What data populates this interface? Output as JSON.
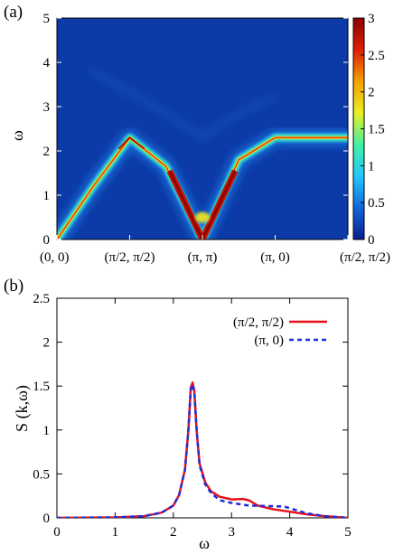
{
  "chart_data": [
    {
      "panel_label": "(a)",
      "type": "heatmap",
      "ylabel": "ω",
      "xlim_path": [
        0,
        4
      ],
      "ylim": [
        0,
        5
      ],
      "yticks": [
        "0",
        "1",
        "2",
        "3",
        "4",
        "5"
      ],
      "x_tick_positions": [
        0,
        1,
        2,
        3,
        4
      ],
      "x_tick_labels": [
        "(0, 0)",
        "(π/2, π/2)",
        "(π, π)",
        "(π, 0)",
        "(π/2, π/2)"
      ],
      "colorbar": {
        "range": [
          0,
          3
        ],
        "ticks": [
          "0",
          "0.5",
          "1",
          "1.5",
          "2",
          "2.5",
          "3"
        ],
        "colors": [
          "#0a1e8c",
          "#1066dc",
          "#22c8ff",
          "#43f0a0",
          "#e9f020",
          "#f5a000",
          "#e01e00",
          "#8c0000"
        ]
      },
      "dispersion_path": [
        {
          "k": 0.0,
          "omega": 0.0
        },
        {
          "k": 0.5,
          "omega": 1.2
        },
        {
          "k": 1.0,
          "omega": 2.3
        },
        {
          "k": 1.5,
          "omega": 1.65
        },
        {
          "k": 2.0,
          "omega": 0.0
        },
        {
          "k": 2.5,
          "omega": 1.8
        },
        {
          "k": 3.0,
          "omega": 2.3
        },
        {
          "k": 4.0,
          "omega": 2.3
        }
      ]
    },
    {
      "panel_label": "(b)",
      "type": "line",
      "xlabel": "ω",
      "ylabel": "S (k,ω)",
      "xlim": [
        0,
        5
      ],
      "ylim": [
        0,
        2.5
      ],
      "xticks": [
        "0",
        "1",
        "2",
        "3",
        "4",
        "5"
      ],
      "yticks": [
        "0",
        "0.5",
        "1",
        "1.5",
        "2",
        "2.5"
      ],
      "legend_position": "top-right",
      "series": [
        {
          "name": "(π/2, π/2)",
          "color": "#e8101a",
          "style": "solid",
          "points": [
            [
              0.0,
              0.0
            ],
            [
              1.0,
              0.005
            ],
            [
              1.5,
              0.02
            ],
            [
              1.8,
              0.06
            ],
            [
              2.0,
              0.14
            ],
            [
              2.1,
              0.26
            ],
            [
              2.2,
              0.55
            ],
            [
              2.26,
              1.0
            ],
            [
              2.3,
              1.48
            ],
            [
              2.33,
              1.54
            ],
            [
              2.36,
              1.45
            ],
            [
              2.4,
              1.0
            ],
            [
              2.45,
              0.62
            ],
            [
              2.55,
              0.4
            ],
            [
              2.65,
              0.3
            ],
            [
              2.8,
              0.24
            ],
            [
              3.0,
              0.21
            ],
            [
              3.2,
              0.215
            ],
            [
              3.3,
              0.2
            ],
            [
              3.45,
              0.14
            ],
            [
              3.7,
              0.1
            ],
            [
              4.0,
              0.07
            ],
            [
              4.3,
              0.04
            ],
            [
              4.6,
              0.02
            ],
            [
              5.0,
              0.0
            ]
          ]
        },
        {
          "name": "(π, 0)",
          "color": "#1a2ee0",
          "style": "dashed",
          "points": [
            [
              0.0,
              0.0
            ],
            [
              1.0,
              0.005
            ],
            [
              1.5,
              0.02
            ],
            [
              1.8,
              0.06
            ],
            [
              2.0,
              0.14
            ],
            [
              2.1,
              0.26
            ],
            [
              2.2,
              0.55
            ],
            [
              2.26,
              1.0
            ],
            [
              2.3,
              1.46
            ],
            [
              2.33,
              1.52
            ],
            [
              2.36,
              1.43
            ],
            [
              2.4,
              1.0
            ],
            [
              2.45,
              0.6
            ],
            [
              2.55,
              0.38
            ],
            [
              2.65,
              0.28
            ],
            [
              2.8,
              0.2
            ],
            [
              3.0,
              0.17
            ],
            [
              3.3,
              0.14
            ],
            [
              3.6,
              0.135
            ],
            [
              3.9,
              0.13
            ],
            [
              4.05,
              0.1
            ],
            [
              4.3,
              0.05
            ],
            [
              4.6,
              0.02
            ],
            [
              5.0,
              0.0
            ]
          ]
        }
      ]
    }
  ]
}
